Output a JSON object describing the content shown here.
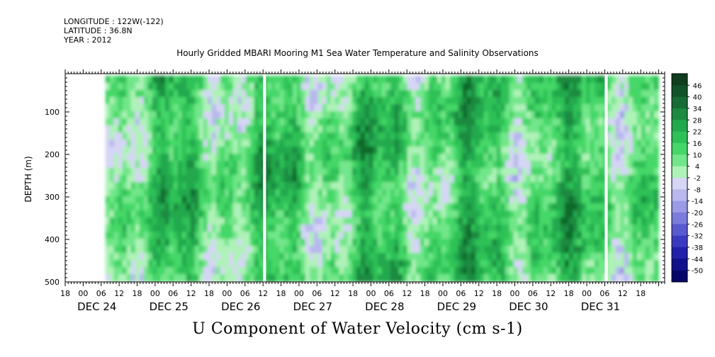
{
  "header": {
    "longitude": "LONGITUDE : 122W(-122)",
    "latitude": "LATITUDE : 36.8N",
    "year": "YEAR : 2012"
  },
  "chart_data": {
    "type": "heatmap",
    "title": "Hourly Gridded MBARI Mooring M1 Sea Water Temperature and Salinity Observations",
    "xlabel": "U Component of Water Velocity (cm s-1)",
    "ylabel": "DEPTH (m)",
    "xlim": [
      "2012-12-23T12:00",
      "2012-12-31T20:00"
    ],
    "ylim": [
      500,
      10
    ],
    "y_reversed": true,
    "y_ticks": [
      100,
      200,
      300,
      400,
      500
    ],
    "x_hour_ticks": [
      "18",
      "00",
      "06",
      "12",
      "18",
      "00",
      "06",
      "12",
      "18",
      "00",
      "06",
      "12",
      "18",
      "00",
      "06",
      "12",
      "18",
      "00",
      "06",
      "12",
      "18",
      "00",
      "06",
      "12",
      "18",
      "00",
      "06",
      "12",
      "18",
      "00",
      "06",
      "12",
      "18"
    ],
    "x_date_labels": [
      {
        "label": "DEC 24",
        "date": "2012-12-24"
      },
      {
        "label": "DEC 25",
        "date": "2012-12-25"
      },
      {
        "label": "DEC 26",
        "date": "2012-12-26"
      },
      {
        "label": "DEC 27",
        "date": "2012-12-27"
      },
      {
        "label": "DEC 28",
        "date": "2012-12-28"
      },
      {
        "label": "DEC 29",
        "date": "2012-12-29"
      },
      {
        "label": "DEC 30",
        "date": "2012-12-30"
      },
      {
        "label": "DEC 31",
        "date": "2012-12-31"
      }
    ],
    "colorbar": {
      "levels": [
        46,
        40,
        34,
        28,
        22,
        16,
        10,
        4,
        -2,
        -8,
        -14,
        -20,
        -26,
        -32,
        -38,
        -44,
        -50
      ],
      "colors_top_to_bottom": [
        "#0f3d1e",
        "#12522a",
        "#176b34",
        "#1c8a41",
        "#22a84d",
        "#2dc157",
        "#45d768",
        "#72e68a",
        "#aef2b8",
        "#d5d5f5",
        "#b8b8ee",
        "#9a9ae6",
        "#7b7bdc",
        "#5a5ad0",
        "#3a3ac0",
        "#2020a8",
        "#10108c",
        "#06066a"
      ]
    },
    "gaps": [
      {
        "start": "2012-12-26T06:00",
        "end": "2012-12-26T07:00"
      },
      {
        "start": "2012-12-31T00:00",
        "end": "2012-12-31T01:00"
      }
    ]
  }
}
